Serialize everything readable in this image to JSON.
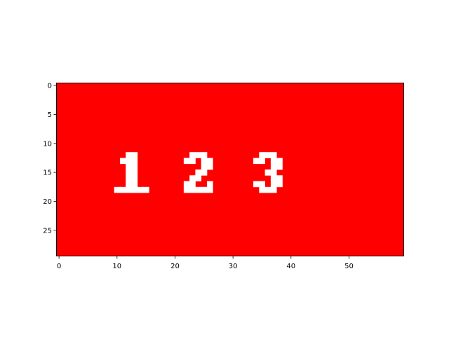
{
  "chart_data": {
    "type": "heatmap",
    "title": "",
    "xlabel": "",
    "ylabel": "",
    "xlim": [
      -0.5,
      59.5
    ],
    "ylim": [
      29.5,
      -0.5
    ],
    "x_ticks": [
      0,
      10,
      20,
      30,
      40,
      50
    ],
    "y_ticks": [
      0,
      5,
      10,
      15,
      20,
      25
    ],
    "grid": false,
    "colors": {
      "background": "#ff0000",
      "foreground": "#ffffff"
    },
    "image_size": {
      "cols": 60,
      "rows": 30
    },
    "pixel_text": "1 2 3",
    "glyphs": [
      {
        "char": "1",
        "col": 10,
        "row": 12,
        "bitmap": [
          "..##..",
          ".###..",
          "..##..",
          "..##..",
          "..##..",
          "..##..",
          "######"
        ]
      },
      {
        "char": "2",
        "col": 22,
        "row": 12,
        "bitmap": [
          ".###.",
          "##.##",
          "...##",
          "..##.",
          ".##..",
          "##..#",
          "#####"
        ]
      },
      {
        "char": "3",
        "col": 34,
        "row": 12,
        "bitmap": [
          ".###.",
          "##.##",
          "...##",
          "..##.",
          "...##",
          "##.##",
          ".###."
        ]
      }
    ]
  }
}
